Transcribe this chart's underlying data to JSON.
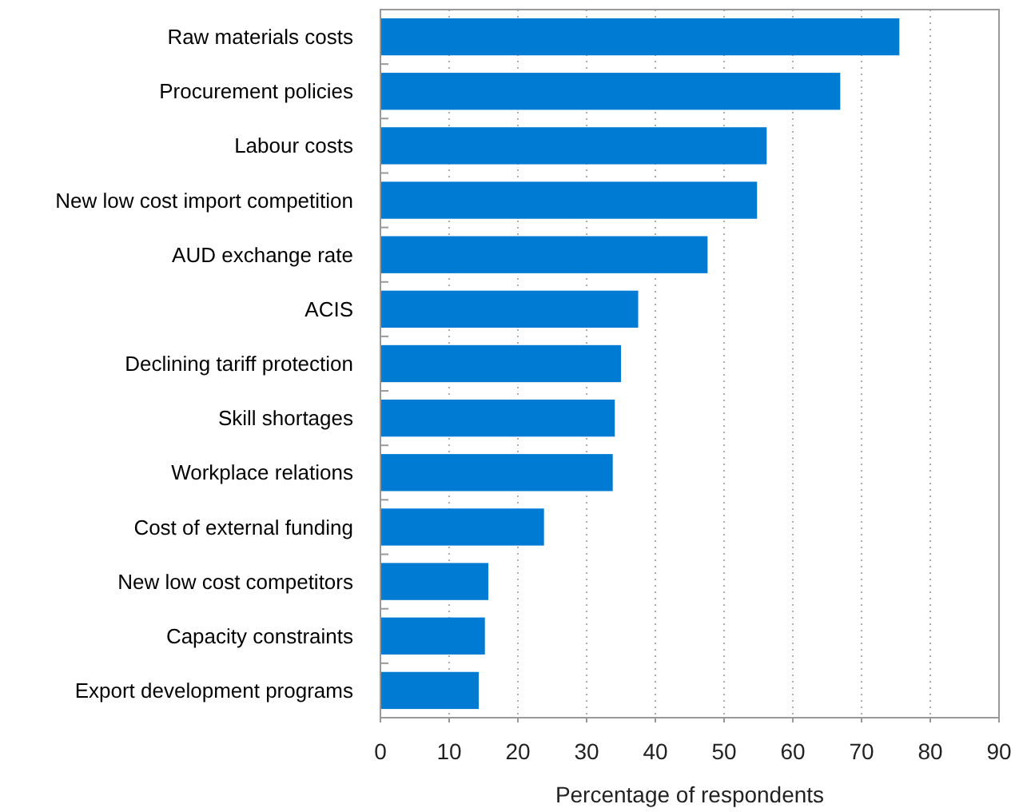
{
  "chart_data": {
    "type": "bar",
    "orientation": "horizontal",
    "xlabel": "Percentage of respondents",
    "categories": [
      "Raw materials costs",
      "Procurement policies",
      "Labour costs",
      "New low cost import competition",
      "AUD exchange rate",
      "ACIS",
      "Declining tariff protection",
      "Skill shortages",
      "Workplace relations",
      "Cost of external funding",
      "New low cost competitors",
      "Capacity constraints",
      "Export development programs"
    ],
    "values": [
      75.5,
      66.9,
      56.2,
      54.8,
      47.6,
      37.5,
      35.0,
      34.1,
      33.8,
      23.8,
      15.7,
      15.2,
      14.3
    ],
    "color": "#007bd4",
    "xlim": [
      0,
      90
    ],
    "xticks": [
      0,
      10,
      20,
      30,
      40,
      50,
      60,
      70,
      80,
      90
    ],
    "grid": "x"
  }
}
